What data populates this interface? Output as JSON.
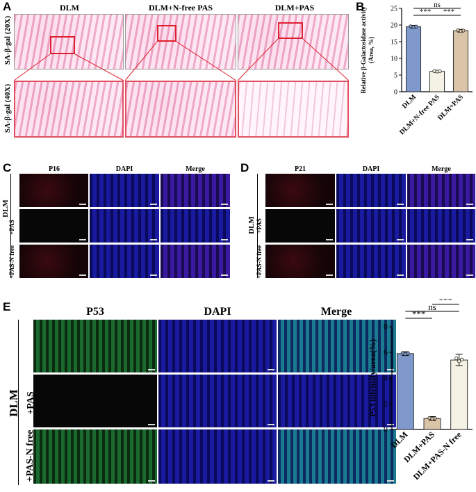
{
  "panel_labels": {
    "a": "A",
    "b": "B",
    "c": "C",
    "d": "D",
    "e": "E"
  },
  "panel_a": {
    "columns": [
      "DLM",
      "DLM+N-free PAS",
      "DLM+PAS"
    ],
    "rows": [
      "SA-β-gal (20X)",
      "SA-β-gal (40X)"
    ]
  },
  "panel_c": {
    "columns": [
      "P16",
      "DAPI",
      "Merge"
    ],
    "group": "DLM",
    "rows": [
      "+PAS",
      "+PAS-N free"
    ]
  },
  "panel_d": {
    "columns": [
      "P21",
      "DAPI",
      "Merge"
    ],
    "group": "DLM",
    "rows": [
      "+PAS",
      "+PAS-N free"
    ]
  },
  "panel_e": {
    "columns": [
      "P53",
      "DAPI",
      "Merge"
    ],
    "group": "DLM",
    "rows": [
      "+PAS",
      "+PAS-N free"
    ]
  },
  "chart_data": [
    {
      "type": "bar",
      "ylabel": "Relative β-Galactosidase activity\n(Area, %)",
      "ylabel_line1": "Relative β-Galactosidase activity",
      "ylabel_line2": "(Area, %)",
      "categories": [
        "DLM",
        "DLM+N-free PAS",
        "DLM+PAS"
      ],
      "values": [
        19.5,
        6.1,
        18.3
      ],
      "errors": [
        0.4,
        0.3,
        0.4
      ],
      "colors": [
        "#7f99cc",
        "#f4f2e4",
        "#d9c4a8"
      ],
      "ylim": [
        0,
        25
      ],
      "yticks": [
        "0",
        "5",
        "10",
        "15",
        "20",
        "25"
      ],
      "significance": [
        {
          "pair": [
            0,
            1
          ],
          "label": "***"
        },
        {
          "pair": [
            1,
            2
          ],
          "label": "***"
        },
        {
          "pair": [
            0,
            2
          ],
          "label": "ns"
        }
      ]
    },
    {
      "type": "bar",
      "ylabel": "P53 intensity/area(%)",
      "categories": [
        "DLM",
        "DLM+PAS",
        "DLM+PAS-N free"
      ],
      "values": [
        5.9,
        0.85,
        5.4
      ],
      "errors": [
        0.15,
        0.15,
        0.45
      ],
      "colors": [
        "#7f99cc",
        "#d9c4a8",
        "#f4f2e4"
      ],
      "ylim": [
        0,
        8
      ],
      "yticks": [
        "0",
        "2",
        "4",
        "6",
        "8"
      ],
      "significance": [
        {
          "pair": [
            0,
            1
          ],
          "label": "***"
        },
        {
          "pair": [
            0,
            2
          ],
          "label": "ns"
        },
        {
          "pair": [
            1,
            2
          ],
          "label": "***"
        }
      ]
    }
  ]
}
